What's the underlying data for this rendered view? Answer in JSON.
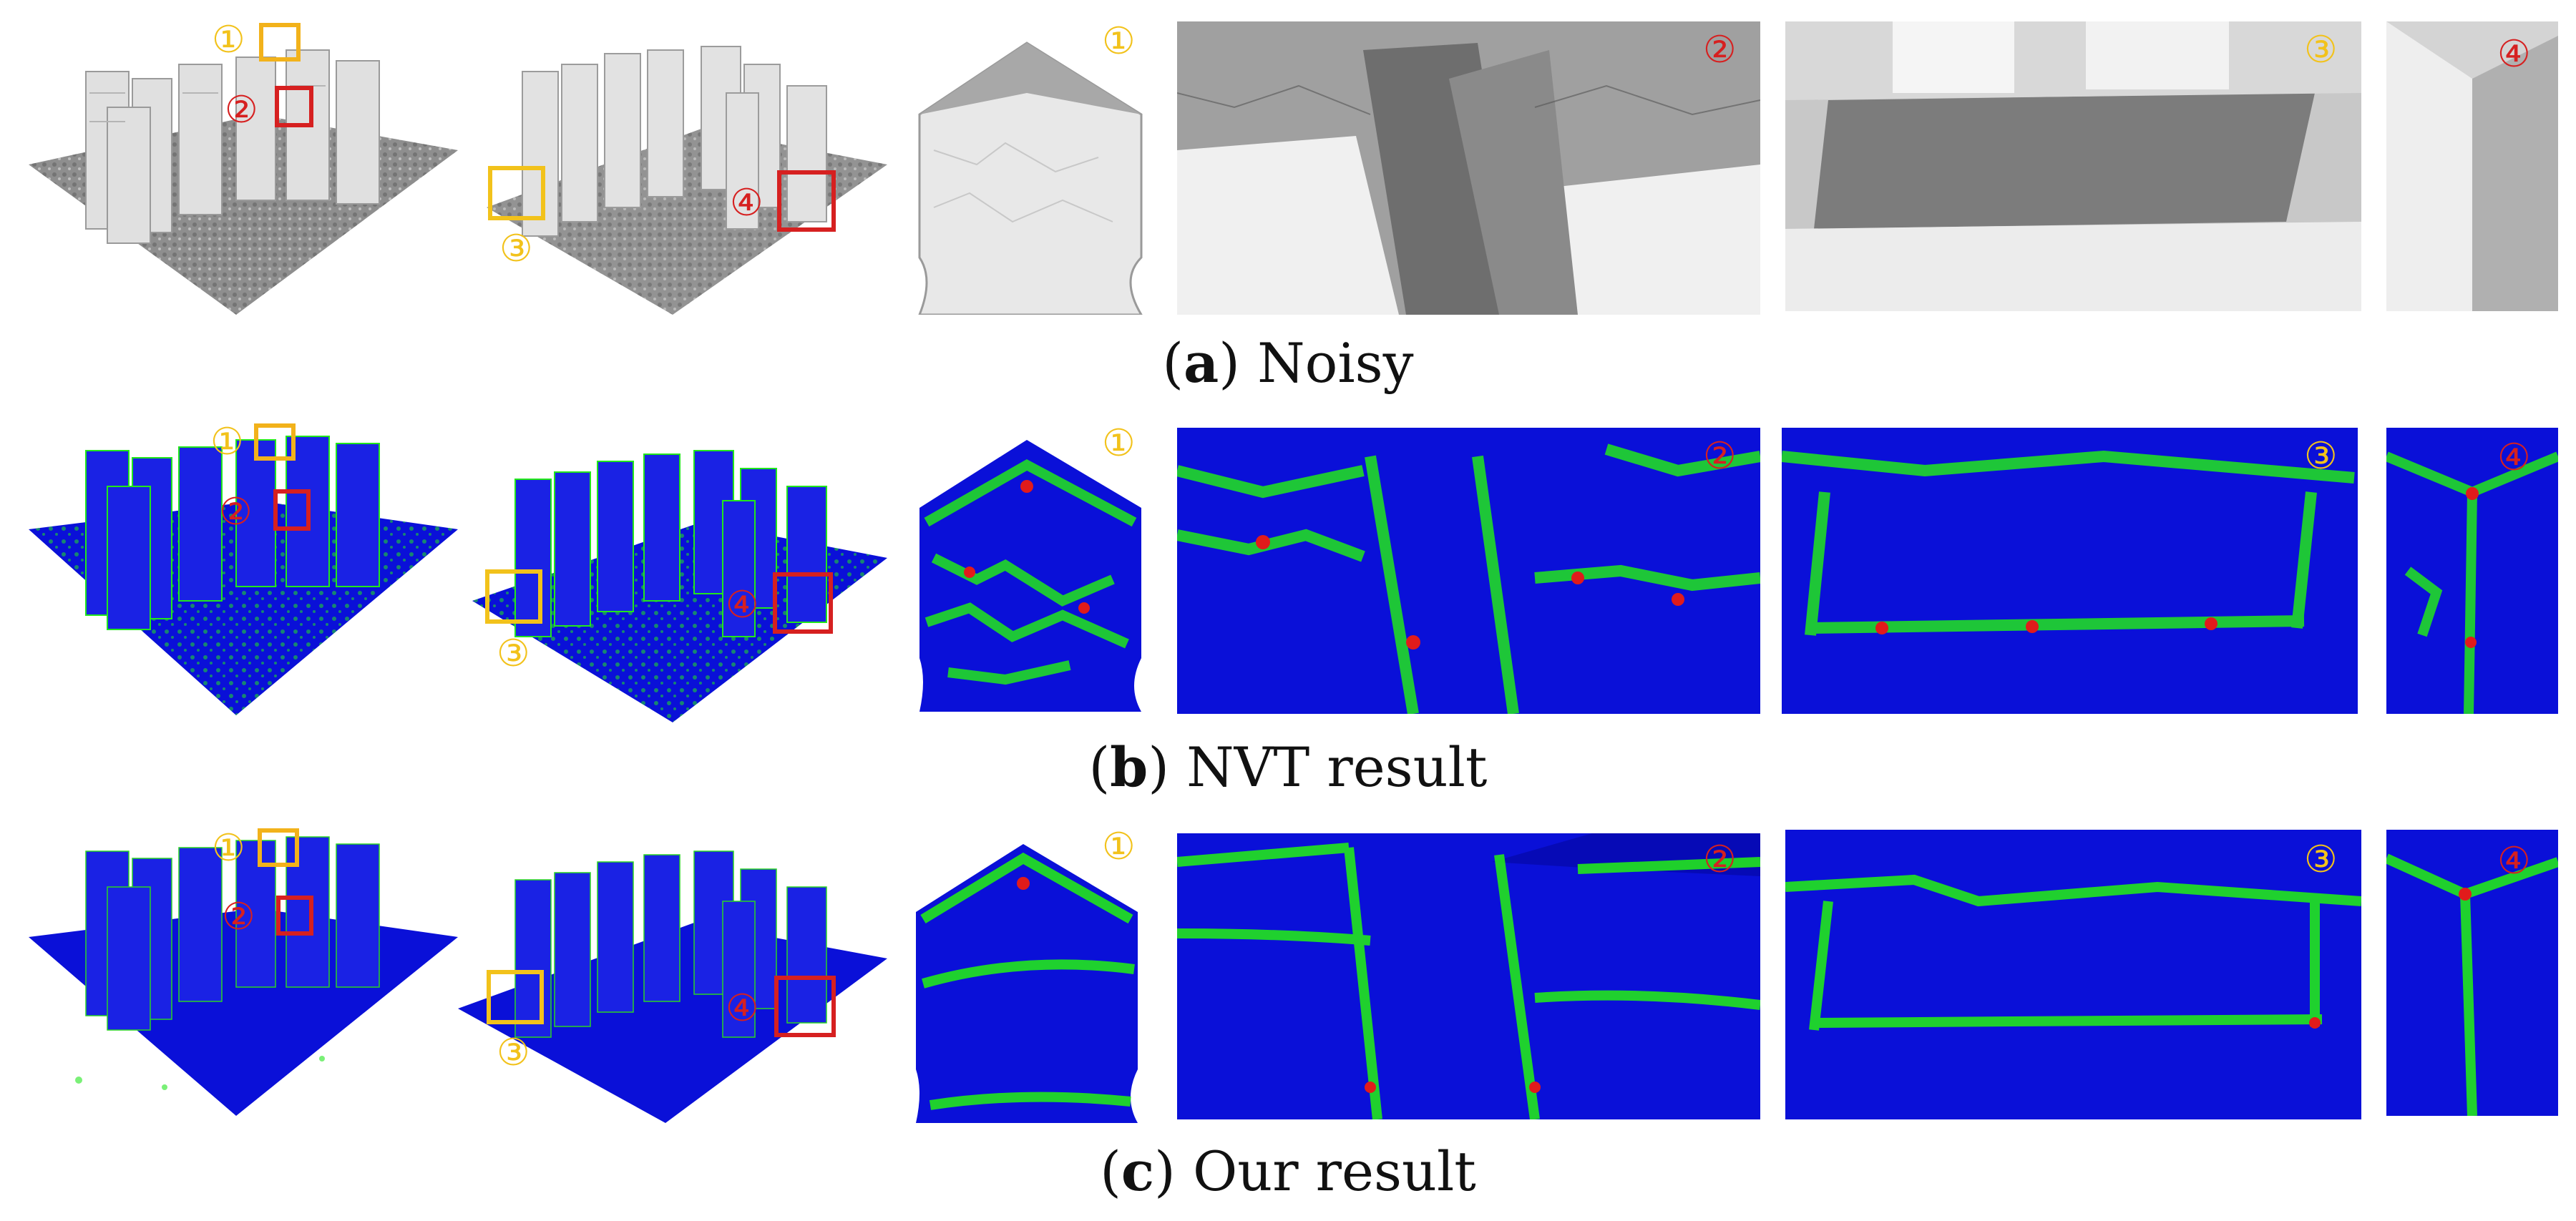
{
  "rows": [
    {
      "caption_letter": "a",
      "caption_text": " Noisy",
      "style": "noisy",
      "overview_markers": {
        "m1": "①",
        "m2": "②",
        "m3": "③",
        "m4": "④"
      },
      "zoom_markers": [
        "①",
        "②",
        "③",
        "④"
      ]
    },
    {
      "caption_letter": "b",
      "caption_text": " NVT result",
      "style": "nvt",
      "overview_markers": {
        "m1": "①",
        "m2": "②",
        "m3": "③",
        "m4": "④"
      },
      "zoom_markers": [
        "①",
        "②",
        "③",
        "④"
      ]
    },
    {
      "caption_letter": "c",
      "caption_text": " Our result",
      "style": "ours",
      "overview_markers": {
        "m1": "①",
        "m2": "②",
        "m3": "③",
        "m4": "④"
      },
      "zoom_markers": [
        "①",
        "②",
        "③",
        "④"
      ]
    }
  ],
  "colors": {
    "marker_yellow": "#f2c21b",
    "marker_red": "#d62020",
    "mesh_gray": "#bdbdbd",
    "error_blue": "#0a10d8",
    "error_green": "#22e61c",
    "error_red": "#e11b1b"
  }
}
